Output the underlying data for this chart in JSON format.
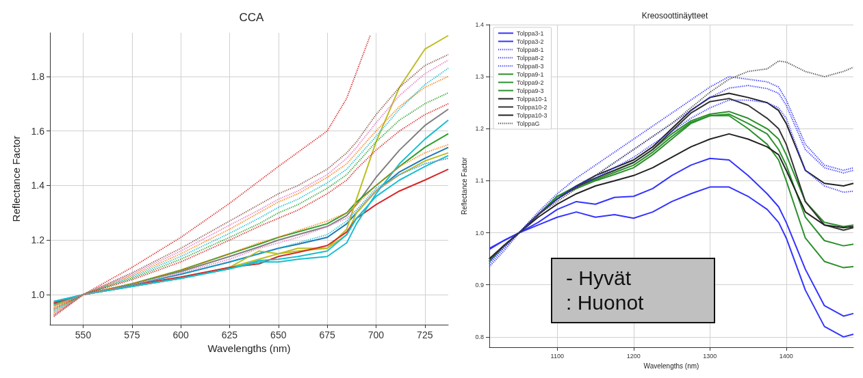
{
  "chart_data": [
    {
      "type": "line",
      "title": "CCA",
      "xlabel": "Wavelengths (nm)",
      "ylabel": "Reflectance Factor",
      "xlim": [
        533,
        737
      ],
      "ylim": [
        0.89,
        1.96
      ],
      "xticks": [
        550,
        575,
        600,
        625,
        650,
        675,
        700,
        725
      ],
      "yticks": [
        {
          "value": 1,
          "label": "1.0"
        },
        1.2,
        1.4,
        1.6,
        1.8
      ],
      "grid": true,
      "legend": false,
      "marker": "none",
      "x": [
        535,
        550,
        575,
        600,
        625,
        640,
        650,
        660,
        675,
        685,
        690,
        700,
        712,
        725,
        737
      ],
      "series": [
        {
          "color": "#d62728",
          "line_style": "dotted",
          "x": [
            535,
            550,
            575,
            600,
            625,
            650,
            675,
            685,
            697
          ],
          "values": [
            0.92,
            1.0,
            1.1,
            1.21,
            1.335,
            1.47,
            1.6,
            1.72,
            1.95
          ]
        },
        {
          "color": "#8c564b",
          "line_style": "dotted",
          "values": [
            0.925,
            1.0,
            1.08,
            1.17,
            1.27,
            1.33,
            1.37,
            1.4,
            1.46,
            1.52,
            1.56,
            1.66,
            1.76,
            1.84,
            1.88
          ]
        },
        {
          "color": "#e377c2",
          "line_style": "dotted",
          "values": [
            0.93,
            1.0,
            1.075,
            1.16,
            1.255,
            1.31,
            1.35,
            1.38,
            1.44,
            1.5,
            1.54,
            1.63,
            1.73,
            1.81,
            1.86
          ]
        },
        {
          "color": "#ff7f0e",
          "line_style": "dotted",
          "values": [
            0.935,
            1.0,
            1.07,
            1.15,
            1.24,
            1.3,
            1.34,
            1.37,
            1.43,
            1.48,
            1.52,
            1.6,
            1.69,
            1.76,
            1.8
          ]
        },
        {
          "color": "#17becf",
          "line_style": "dotted",
          "values": [
            0.94,
            1.0,
            1.065,
            1.14,
            1.225,
            1.28,
            1.32,
            1.35,
            1.41,
            1.46,
            1.5,
            1.58,
            1.68,
            1.77,
            1.83
          ]
        },
        {
          "color": "#2ca02c",
          "line_style": "dotted",
          "values": [
            0.945,
            1.0,
            1.06,
            1.13,
            1.21,
            1.26,
            1.3,
            1.33,
            1.39,
            1.44,
            1.48,
            1.56,
            1.64,
            1.7,
            1.74
          ]
        },
        {
          "color": "#d62728",
          "line_style": "dotted",
          "values": [
            0.95,
            1.0,
            1.055,
            1.12,
            1.2,
            1.25,
            1.28,
            1.31,
            1.37,
            1.42,
            1.46,
            1.53,
            1.6,
            1.66,
            1.7
          ]
        },
        {
          "color": "#ff7f0e",
          "line_style": "dotted",
          "values": [
            0.955,
            1.0,
            1.04,
            1.09,
            1.15,
            1.19,
            1.21,
            1.235,
            1.27,
            1.3,
            1.33,
            1.4,
            1.47,
            1.52,
            1.55
          ]
        },
        {
          "color": "#e377c2",
          "line_style": "dotted",
          "values": [
            0.96,
            1.0,
            1.035,
            1.08,
            1.13,
            1.17,
            1.19,
            1.21,
            1.25,
            1.28,
            1.31,
            1.38,
            1.44,
            1.48,
            1.5
          ]
        },
        {
          "color": "#17becf",
          "line_style": "dotted",
          "values": [
            0.965,
            1.0,
            1.035,
            1.075,
            1.12,
            1.15,
            1.17,
            1.19,
            1.22,
            1.27,
            1.31,
            1.39,
            1.44,
            1.48,
            1.5
          ]
        },
        {
          "color": "#7f7f7f",
          "line_style": "solid",
          "values": [
            0.965,
            1.0,
            1.04,
            1.085,
            1.14,
            1.175,
            1.2,
            1.22,
            1.25,
            1.29,
            1.33,
            1.43,
            1.53,
            1.62,
            1.68
          ]
        },
        {
          "color": "#2ca02c",
          "line_style": "solid",
          "values": [
            0.965,
            1.0,
            1.04,
            1.09,
            1.15,
            1.185,
            1.21,
            1.23,
            1.26,
            1.3,
            1.34,
            1.4,
            1.47,
            1.54,
            1.59
          ]
        },
        {
          "color": "#1f77b4",
          "line_style": "solid",
          "values": [
            0.97,
            1.0,
            1.035,
            1.075,
            1.12,
            1.15,
            1.17,
            1.185,
            1.21,
            1.26,
            1.3,
            1.38,
            1.45,
            1.5,
            1.54
          ]
        },
        {
          "color": "#bcbd22",
          "line_style": "solid",
          "values": [
            0.96,
            1.0,
            1.03,
            1.06,
            1.1,
            1.16,
            1.15,
            1.17,
            1.17,
            1.24,
            1.35,
            1.56,
            1.76,
            1.9,
            1.95
          ]
        },
        {
          "color": "#bcbd22",
          "line_style": "solid",
          "values": [
            0.96,
            1.0,
            1.03,
            1.06,
            1.1,
            1.13,
            1.15,
            1.16,
            1.17,
            1.22,
            1.3,
            1.38,
            1.44,
            1.49,
            1.52
          ]
        },
        {
          "color": "#d62728",
          "line_style": "solid",
          "values": [
            0.97,
            1.0,
            1.035,
            1.065,
            1.1,
            1.113,
            1.14,
            1.155,
            1.18,
            1.23,
            1.28,
            1.33,
            1.38,
            1.42,
            1.46
          ]
        },
        {
          "color": "#17becf",
          "line_style": "solid",
          "values": [
            0.975,
            1.0,
            1.03,
            1.06,
            1.095,
            1.12,
            1.12,
            1.13,
            1.14,
            1.19,
            1.26,
            1.37,
            1.48,
            1.57,
            1.64
          ]
        },
        {
          "color": "#17becf",
          "line_style": "solid",
          "values": [
            0.975,
            1.0,
            1.03,
            1.06,
            1.095,
            1.125,
            1.13,
            1.14,
            1.16,
            1.22,
            1.28,
            1.36,
            1.42,
            1.47,
            1.51
          ]
        }
      ]
    },
    {
      "type": "line",
      "title": "Kreosoottinäytteet",
      "xlabel": "Wavelengths (nm)",
      "ylabel": "Reflectance Factor",
      "xlim": [
        1011,
        1488
      ],
      "ylim": [
        0.78,
        1.4
      ],
      "xticks": [
        1100,
        1200,
        1300,
        1400
      ],
      "yticks": [
        0.8,
        0.9,
        {
          "value": 1,
          "label": "1.0"
        },
        1.1,
        1.2,
        1.3,
        1.4
      ],
      "grid": true,
      "legend": "top left",
      "marker": "none",
      "annotations": [
        "- Hyvät",
        ": Huonot"
      ],
      "x": [
        1011,
        1030,
        1050,
        1075,
        1100,
        1125,
        1150,
        1175,
        1200,
        1225,
        1250,
        1275,
        1300,
        1325,
        1350,
        1375,
        1390,
        1400,
        1425,
        1450,
        1475,
        1488
      ],
      "series": [
        {
          "name": "Tolppa3-1",
          "color": "#3333ff",
          "line_style": "solid",
          "values": [
            0.97,
            0.985,
            1.0,
            1.02,
            1.045,
            1.06,
            1.055,
            1.068,
            1.07,
            1.085,
            1.11,
            1.13,
            1.143,
            1.14,
            1.11,
            1.075,
            1.05,
            1.02,
            0.93,
            0.86,
            0.84,
            0.845
          ]
        },
        {
          "name": "Tolppa3-2",
          "color": "#3333ff",
          "line_style": "solid",
          "values": [
            0.968,
            0.985,
            1.0,
            1.015,
            1.03,
            1.04,
            1.03,
            1.035,
            1.028,
            1.04,
            1.06,
            1.075,
            1.088,
            1.088,
            1.07,
            1.045,
            1.02,
            0.99,
            0.89,
            0.82,
            0.8,
            0.805
          ]
        },
        {
          "name": "Tolppa8-1",
          "color": "#3333ff",
          "line_style": "dotted",
          "values": [
            0.935,
            0.965,
            1.0,
            1.04,
            1.075,
            1.105,
            1.13,
            1.155,
            1.18,
            1.205,
            1.23,
            1.255,
            1.28,
            1.3,
            1.295,
            1.29,
            1.28,
            1.255,
            1.17,
            1.13,
            1.12,
            1.125
          ]
        },
        {
          "name": "Tolppa8-2",
          "color": "#3333ff",
          "line_style": "dotted",
          "values": [
            0.94,
            0.97,
            1.0,
            1.035,
            1.065,
            1.09,
            1.11,
            1.135,
            1.16,
            1.185,
            1.21,
            1.235,
            1.26,
            1.278,
            1.283,
            1.277,
            1.268,
            1.245,
            1.16,
            1.125,
            1.115,
            1.12
          ]
        },
        {
          "name": "Tolppa8-3",
          "color": "#3333ff",
          "line_style": "dotted",
          "values": [
            0.945,
            0.972,
            1.0,
            1.035,
            1.065,
            1.09,
            1.105,
            1.125,
            1.145,
            1.17,
            1.195,
            1.22,
            1.24,
            1.255,
            1.255,
            1.25,
            1.24,
            1.22,
            1.12,
            1.09,
            1.078,
            1.08
          ]
        },
        {
          "name": "Tolppa9-1",
          "color": "#2a8f2a",
          "line_style": "solid",
          "values": [
            0.945,
            0.975,
            1.0,
            1.035,
            1.07,
            1.09,
            1.105,
            1.12,
            1.135,
            1.16,
            1.19,
            1.215,
            1.228,
            1.233,
            1.22,
            1.2,
            1.18,
            1.15,
            1.06,
            1.02,
            1.012,
            1.015
          ]
        },
        {
          "name": "Tolppa9-2",
          "color": "#2a8f2a",
          "line_style": "solid",
          "values": [
            0.945,
            0.975,
            1.0,
            1.035,
            1.07,
            1.088,
            1.102,
            1.116,
            1.13,
            1.155,
            1.185,
            1.212,
            1.225,
            1.228,
            1.21,
            1.19,
            1.16,
            1.13,
            1.03,
            0.985,
            0.975,
            0.978
          ]
        },
        {
          "name": "Tolppa9-3",
          "color": "#2a8f2a",
          "line_style": "solid",
          "values": [
            0.945,
            0.975,
            1.0,
            1.035,
            1.07,
            1.085,
            1.1,
            1.112,
            1.125,
            1.15,
            1.18,
            1.21,
            1.225,
            1.225,
            1.2,
            1.17,
            1.14,
            1.1,
            0.99,
            0.945,
            0.933,
            0.935
          ]
        },
        {
          "name": "Tolppa10-1",
          "color": "#222222",
          "line_style": "solid",
          "values": [
            0.95,
            0.975,
            1.0,
            1.035,
            1.065,
            1.09,
            1.11,
            1.125,
            1.14,
            1.165,
            1.2,
            1.235,
            1.26,
            1.268,
            1.26,
            1.25,
            1.235,
            1.21,
            1.12,
            1.095,
            1.09,
            1.095
          ]
        },
        {
          "name": "Tolppa10-2",
          "color": "#333333",
          "line_style": "solid",
          "values": [
            0.95,
            0.975,
            1.0,
            1.035,
            1.065,
            1.088,
            1.105,
            1.12,
            1.135,
            1.16,
            1.195,
            1.23,
            1.252,
            1.258,
            1.245,
            1.22,
            1.2,
            1.17,
            1.06,
            1.015,
            1.005,
            1.01
          ]
        },
        {
          "name": "Tolppa10-3",
          "color": "#222222",
          "line_style": "solid",
          "values": [
            0.95,
            0.975,
            1.0,
            1.03,
            1.055,
            1.075,
            1.09,
            1.1,
            1.11,
            1.125,
            1.145,
            1.165,
            1.18,
            1.19,
            1.18,
            1.165,
            1.15,
            1.12,
            1.04,
            1.015,
            1.01,
            1.012
          ]
        },
        {
          "name": "TolppaG",
          "color": "#444444",
          "line_style": "dotted",
          "values": [
            0.95,
            0.975,
            1.0,
            1.035,
            1.06,
            1.085,
            1.11,
            1.135,
            1.16,
            1.185,
            1.21,
            1.24,
            1.27,
            1.295,
            1.31,
            1.315,
            1.33,
            1.328,
            1.31,
            1.3,
            1.31,
            1.318
          ]
        }
      ]
    }
  ]
}
